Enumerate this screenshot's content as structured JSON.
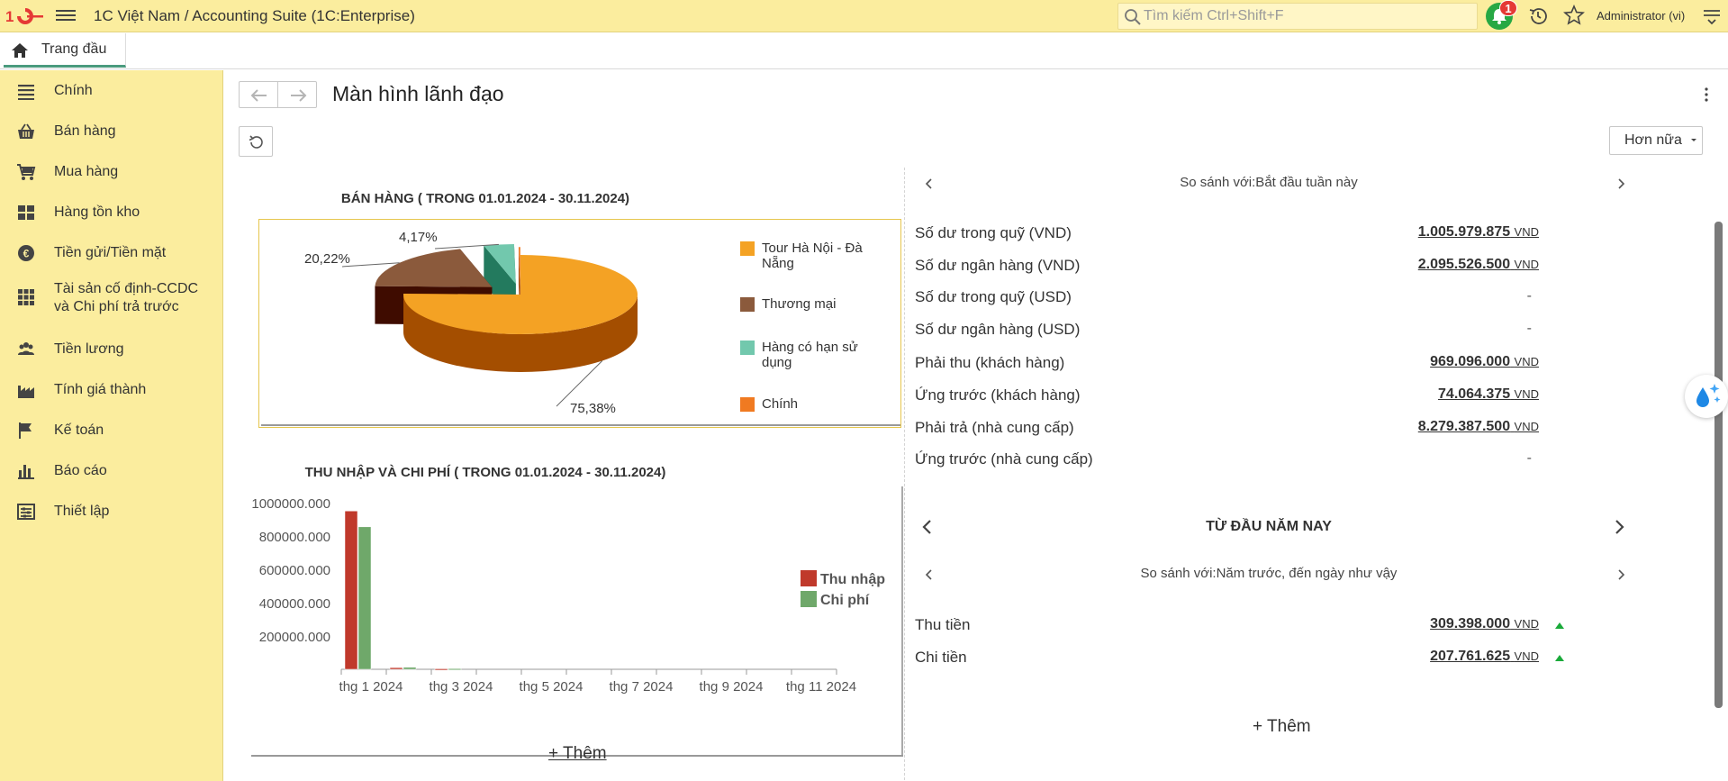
{
  "app": {
    "title": "1C Việt Nam / Accounting Suite  (1C:Enterprise)",
    "search_placeholder": "Tìm kiếm Ctrl+Shift+F",
    "notification_count": "1",
    "user": "Administrator (vi)",
    "brand_color": "#e53935",
    "panel_color": "#fbed9e"
  },
  "tabs": [
    {
      "label": "Trang đầu",
      "icon": "home-icon"
    }
  ],
  "sidebar": {
    "items": [
      {
        "label": "Chính",
        "icon": "list-icon"
      },
      {
        "label": "Bán hàng",
        "icon": "basket-icon"
      },
      {
        "label": "Mua hàng",
        "icon": "cart-icon"
      },
      {
        "label": "Hàng tồn kho",
        "icon": "warehouse-icon"
      },
      {
        "label": "Tiền gửi/Tiền mặt",
        "icon": "coin-icon"
      },
      {
        "label": "Tài sản cố định-CCDC",
        "label2": "và Chi phí trả trước",
        "icon": "grid-icon"
      },
      {
        "label": "Tiền lương",
        "icon": "people-icon"
      },
      {
        "label": "Tính giá thành",
        "icon": "factory-icon"
      },
      {
        "label": "Kế toán",
        "icon": "flag-icon"
      },
      {
        "label": "Báo cáo",
        "icon": "bar-chart-icon"
      },
      {
        "label": "Thiết lập",
        "icon": "settings-table-icon"
      }
    ]
  },
  "page": {
    "title": "Màn hình lãnh đạo",
    "more_label": "Hơn nữa",
    "add_label": "+ Thêm"
  },
  "sales_chart": {
    "title": "BÁN HÀNG ( TRONG 01.01.2024 - 30.11.2024)",
    "chart_data": {
      "type": "pie",
      "labels": [
        "Tour Hà Nội - Đà Nẵng",
        "Thương mại",
        "Hàng có hạn sử dụng",
        "Chính"
      ],
      "values": [
        75.38,
        20.22,
        4.17,
        0.23
      ],
      "data_labels": [
        "75,38%",
        "20,22%",
        "4,17%",
        ""
      ],
      "colors": [
        "#f4a224",
        "#8b5a3c",
        "#72c8ad",
        "#f07a21"
      ],
      "side_colors": [
        "#a44e00",
        "#3f0c00",
        "#237a5e",
        "#a94400"
      ],
      "legend": "right"
    }
  },
  "income_chart": {
    "title": "THU NHẬP VÀ CHI PHÍ ( TRONG 01.01.2024 - 30.11.2024)",
    "chart_data": {
      "type": "bar",
      "categories": [
        "thg 1 2024",
        "thg 2 2024",
        "thg 3 2024",
        "thg 4 2024",
        "thg 5 2024",
        "thg 6 2024",
        "thg 7 2024",
        "thg 8 2024",
        "thg 9 2024",
        "thg 10 2024",
        "thg 11 2024"
      ],
      "tick_labels": [
        "thg 1 2024",
        "thg 3 2024",
        "thg 5 2024",
        "thg 7 2024",
        "thg 9 2024",
        "thg 11 2024"
      ],
      "series": [
        {
          "name": "Thu nhập",
          "color": "#c0392b",
          "values": [
            950000,
            10000,
            3000,
            0,
            0,
            0,
            0,
            0,
            0,
            0,
            0
          ]
        },
        {
          "name": "Chi phí",
          "color": "#6fa86a",
          "values": [
            855000,
            12000,
            4000,
            0,
            0,
            0,
            0,
            0,
            0,
            0,
            0
          ]
        }
      ],
      "y_ticks": [
        "1000000.000",
        "800000.000",
        "600000.000",
        "400000.000",
        "200000.000"
      ],
      "ylim": [
        0,
        1000000
      ],
      "legend": "right"
    }
  },
  "balances": {
    "compare_label": "So sánh với:Bắt đầu tuần này",
    "rows": [
      {
        "label": "Số dư trong quỹ (VND)",
        "value": "1.005.979.875",
        "unit": "VND"
      },
      {
        "label": "Số dư ngân hàng (VND)",
        "value": "2.095.526.500",
        "unit": "VND"
      },
      {
        "label": "Số dư trong quỹ (USD)",
        "value": "-",
        "unit": ""
      },
      {
        "label": "Số dư ngân hàng (USD)",
        "value": "-",
        "unit": ""
      },
      {
        "label": "Phải thu (khách hàng)",
        "value": "969.096.000",
        "unit": "VND"
      },
      {
        "label": "Ứng trước (khách hàng)",
        "value": "74.064.375",
        "unit": "VND"
      },
      {
        "label": "Phải trả (nhà cung cấp)",
        "value": "8.279.387.500",
        "unit": "VND"
      },
      {
        "label": "Ứng trước (nhà cung cấp)",
        "value": "-",
        "unit": ""
      }
    ]
  },
  "ytd": {
    "title": "TỪ ĐẦU NĂM NAY",
    "compare_label": "So sánh với:Năm trước, đến ngày như vậy",
    "rows": [
      {
        "label": "Thu tiền",
        "value": "309.398.000",
        "unit": "VND",
        "trend": "up"
      },
      {
        "label": "Chi tiền",
        "value": "207.761.625",
        "unit": "VND",
        "trend": "up"
      }
    ],
    "trend_color": "#1aaa3a"
  }
}
